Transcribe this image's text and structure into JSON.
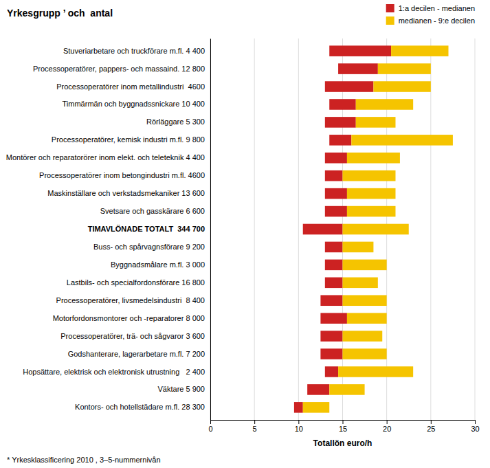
{
  "chart_data": {
    "type": "bar",
    "orientation": "horizontal",
    "title": "Yrkesgrupp ’ och  antal",
    "x_label": "Totallön euro/h",
    "annotations": [
      "* Yrkesklassificering 2010 , 3–5-nummernivån"
    ],
    "categories": [
      "Stuveriarbetare och truckförare m.fl. 4 400",
      "Processoperatörer, pappers- och massaind. 12 800",
      "Processoperatörer inom metallindustri  4600",
      "Timmärmän och byggnadssnickare 10 400",
      "Rörläggare 5 300",
      "Processoperatörer, kemisk industri m.fl. 9 800",
      "Montörer och reparatorörer inom elekt. och teleteknik 4 400",
      "Processoperatörer inom betongindustri m.fl. 4600",
      "Maskinställare och verkstadsmekaniker 13 600",
      "Svetsare och gasskärare 6 600",
      "TIMAVLÖNADE TOTALT  344 700",
      "Buss- och spårvagnsförare 9 200",
      "Byggnadsmålare m.fl. 3 000",
      "Lastbils- och specialfordonsförare 16 800",
      "Processoperatörer, livsmedelsindustri  8 400",
      "Motorfordonsmontorer och -reparatorer 8 000",
      "Processoperatörer, trä- och sågvaror 3 600",
      "Godshanterare, lagerarbetare m.fl. 7 200",
      "Hopsättare, elektrisk och elektronisk utrustning   2 400",
      "Väktare 5 900",
      "Kontors- och hotellstädare m.fl. 28 300"
    ],
    "series": [
      {
        "name": "1:a decilen - medianen",
        "color": "#CC2222",
        "base": [
          13.5,
          14.5,
          13.0,
          13.5,
          13.0,
          13.5,
          13.0,
          13.0,
          13.0,
          13.0,
          10.5,
          13.0,
          13.0,
          13.0,
          12.5,
          12.5,
          12.5,
          12.5,
          13.0,
          11.0,
          9.5
        ],
        "values": [
          20.5,
          19.0,
          18.5,
          16.5,
          16.5,
          16.0,
          15.5,
          15.0,
          15.5,
          15.5,
          15.0,
          15.0,
          15.0,
          15.0,
          15.0,
          15.5,
          15.0,
          15.0,
          14.5,
          13.5,
          10.5
        ]
      },
      {
        "name": "medianen - 9:e decilen",
        "color": "#F5C400",
        "base": [
          20.5,
          19.0,
          18.5,
          16.5,
          16.5,
          16.0,
          15.5,
          15.0,
          15.5,
          15.5,
          15.0,
          15.0,
          15.0,
          15.0,
          15.0,
          15.5,
          15.0,
          15.0,
          14.5,
          13.5,
          10.5
        ],
        "values": [
          27.0,
          25.0,
          25.0,
          23.0,
          21.0,
          27.5,
          21.5,
          21.0,
          21.0,
          21.0,
          22.5,
          18.5,
          20.0,
          19.0,
          20.0,
          20.0,
          19.5,
          20.0,
          23.0,
          17.5,
          13.5
        ]
      }
    ],
    "xlim": [
      0,
      30
    ],
    "xticks": [
      0,
      5,
      10,
      15,
      20,
      25,
      30
    ],
    "grid": true,
    "legend": "top-right"
  }
}
